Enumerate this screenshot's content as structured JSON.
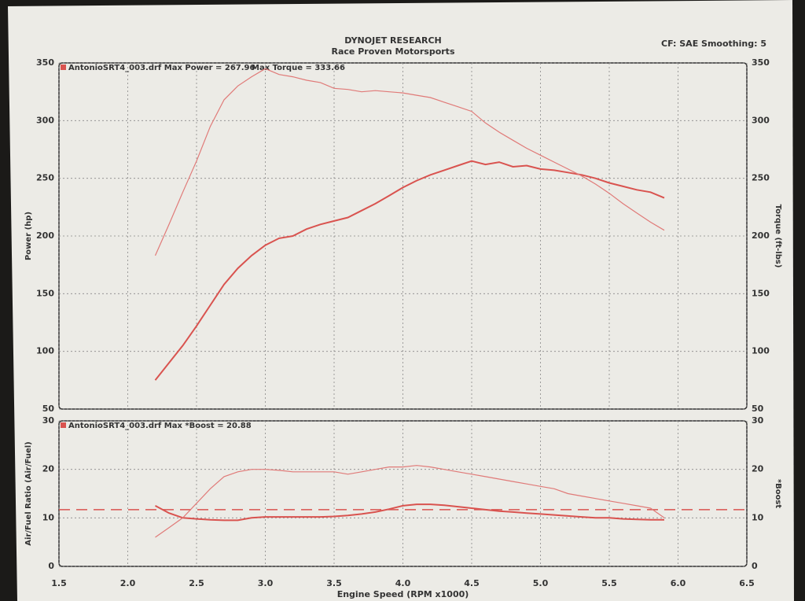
{
  "header": {
    "title": "DYNOJET RESEARCH",
    "subtitle": "Race Proven Motorsports",
    "settings": "CF: SAE  Smoothing: 5"
  },
  "chart_data": [
    {
      "type": "line",
      "legend_text": "AntonioSRT4_003.drf Max Power = 267.96",
      "legend_text2": "Max Torque = 333.66",
      "ylabel": "Power (hp)",
      "y2label": "Torque (ft-lbs)",
      "x": [
        2.2,
        2.3,
        2.4,
        2.5,
        2.6,
        2.7,
        2.8,
        2.9,
        3.0,
        3.1,
        3.2,
        3.3,
        3.4,
        3.5,
        3.6,
        3.7,
        3.8,
        3.9,
        4.0,
        4.1,
        4.2,
        4.3,
        4.4,
        4.5,
        4.6,
        4.7,
        4.8,
        4.9,
        5.0,
        5.1,
        5.2,
        5.3,
        5.4,
        5.5,
        5.6,
        5.7,
        5.8,
        5.9
      ],
      "series": [
        {
          "color": "#d9534f",
          "axis": "y",
          "values": [
            75,
            90,
            105,
            122,
            140,
            158,
            172,
            183,
            192,
            198,
            200,
            206,
            210,
            213,
            216,
            222,
            228,
            235,
            242,
            248,
            253,
            257,
            261,
            265,
            262,
            264,
            260,
            261,
            258,
            257,
            255,
            253,
            250,
            246,
            243,
            240,
            238,
            233
          ]
        },
        {
          "color": "#e07a78",
          "axis": "y2",
          "values": [
            183,
            210,
            238,
            265,
            295,
            318,
            330,
            338,
            345,
            340,
            338,
            335,
            333,
            328,
            327,
            325,
            326,
            325,
            324,
            322,
            320,
            316,
            312,
            308,
            298,
            290,
            283,
            276,
            270,
            264,
            258,
            252,
            245,
            237,
            228,
            220,
            212,
            205
          ]
        }
      ],
      "xlim": [
        1.5,
        6.5
      ],
      "xticks": [
        1.5,
        2,
        2.5,
        3,
        3.5,
        4,
        4.5,
        5,
        5.5,
        6,
        6.5
      ],
      "ylim": [
        50,
        350
      ],
      "yticks": [
        50,
        100,
        150,
        200,
        250,
        300,
        350
      ],
      "y2lim": [
        50,
        350
      ],
      "y2ticks": [
        50,
        100,
        150,
        200,
        250,
        300,
        350
      ],
      "grid": true
    },
    {
      "type": "line",
      "legend_text": "AntonioSRT4_003.drf Max *Boost = 20.88",
      "ylabel": "Air/Fuel Ratio (Air/Fuel)",
      "y2label": "*Boost",
      "xlabel": "Engine Speed (RPM x1000)",
      "x": [
        2.2,
        2.3,
        2.4,
        2.5,
        2.6,
        2.7,
        2.8,
        2.9,
        3.0,
        3.1,
        3.2,
        3.3,
        3.4,
        3.5,
        3.6,
        3.7,
        3.8,
        3.9,
        4.0,
        4.1,
        4.2,
        4.3,
        4.4,
        4.5,
        4.6,
        4.7,
        4.8,
        4.9,
        5.0,
        5.1,
        5.2,
        5.3,
        5.4,
        5.5,
        5.6,
        5.7,
        5.8,
        5.9
      ],
      "series": [
        {
          "color": "#d9534f",
          "axis": "y",
          "values": [
            12.5,
            11,
            10,
            9.8,
            9.6,
            9.5,
            9.5,
            10,
            10.2,
            10.2,
            10.2,
            10.2,
            10.2,
            10.3,
            10.5,
            10.8,
            11.2,
            11.8,
            12.5,
            12.8,
            12.8,
            12.6,
            12.3,
            12,
            11.7,
            11.4,
            11.2,
            11,
            10.8,
            10.6,
            10.4,
            10.2,
            10,
            10,
            9.8,
            9.7,
            9.6,
            9.6
          ]
        },
        {
          "color": "#e07a78",
          "axis": "y2",
          "values": [
            6,
            8,
            10,
            13,
            16,
            18.5,
            19.5,
            20,
            20,
            19.8,
            19.5,
            19.5,
            19.5,
            19.5,
            19,
            19.5,
            20,
            20.5,
            20.5,
            20.8,
            20.5,
            20,
            19.5,
            19,
            18.5,
            18,
            17.5,
            17,
            16.5,
            16,
            15,
            14.5,
            14,
            13.5,
            13,
            12.5,
            12,
            10
          ]
        }
      ],
      "reference_y": 11.7,
      "xlim": [
        1.5,
        6.5
      ],
      "xticks": [
        1.5,
        {
          "value": 2,
          "label": "2.0"
        },
        2.5,
        {
          "value": 3,
          "label": "3.0"
        },
        3.5,
        {
          "value": 4,
          "label": "4.0"
        },
        4.5,
        {
          "value": 5,
          "label": "5.0"
        },
        5.5,
        {
          "value": 6,
          "label": "6.0"
        },
        6.5
      ],
      "ylim": [
        0,
        30
      ],
      "yticks": [
        0,
        10,
        20,
        30
      ],
      "y2lim": [
        0,
        30
      ],
      "y2ticks": [
        0,
        10,
        20,
        30
      ],
      "grid": true
    }
  ]
}
